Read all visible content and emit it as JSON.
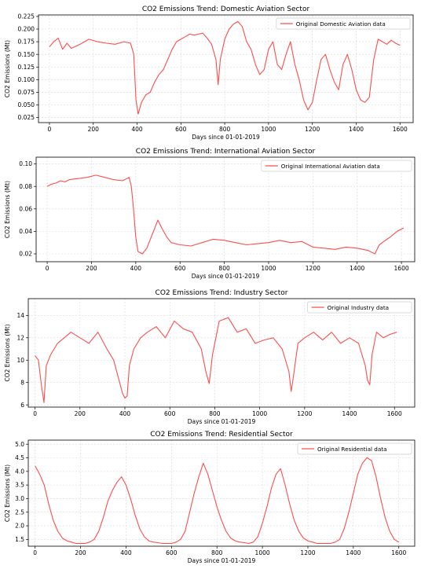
{
  "chart_data": [
    {
      "type": "line",
      "title": "CO2 Emissions Trend: Domestic Aviation Sector",
      "xlabel": "Days since 01-01-2019",
      "ylabel": "CO2 Emissions (Mt)",
      "xlim": [
        -50,
        1660
      ],
      "ylim": [
        0.015,
        0.228
      ],
      "xticks": [
        0,
        200,
        400,
        600,
        800,
        1000,
        1200,
        1400,
        1600
      ],
      "yticks": [
        0.025,
        0.05,
        0.075,
        0.1,
        0.125,
        0.15,
        0.175,
        0.2,
        0.225
      ],
      "ytick_labels": [
        "0.025",
        "0.050",
        "0.075",
        "0.100",
        "0.125",
        "0.150",
        "0.175",
        "0.200",
        "0.225"
      ],
      "grid": true,
      "legend": "top-right",
      "series": [
        {
          "name": "Original Domestic Aviation data",
          "color": "#ff4d4d",
          "x": [
            0,
            20,
            40,
            60,
            80,
            100,
            140,
            180,
            220,
            260,
            300,
            340,
            370,
            385,
            395,
            405,
            420,
            440,
            460,
            480,
            500,
            520,
            540,
            560,
            580,
            600,
            620,
            640,
            660,
            680,
            700,
            720,
            740,
            760,
            770,
            780,
            800,
            820,
            840,
            860,
            880,
            900,
            920,
            940,
            960,
            980,
            1000,
            1020,
            1040,
            1060,
            1080,
            1100,
            1120,
            1140,
            1160,
            1180,
            1200,
            1220,
            1240,
            1260,
            1280,
            1300,
            1320,
            1340,
            1360,
            1380,
            1400,
            1420,
            1440,
            1460,
            1480,
            1500,
            1520,
            1540,
            1560,
            1580,
            1600
          ],
          "y": [
            0.165,
            0.175,
            0.182,
            0.16,
            0.172,
            0.162,
            0.17,
            0.18,
            0.175,
            0.172,
            0.17,
            0.175,
            0.172,
            0.15,
            0.06,
            0.032,
            0.055,
            0.07,
            0.075,
            0.095,
            0.11,
            0.12,
            0.14,
            0.16,
            0.175,
            0.18,
            0.185,
            0.19,
            0.188,
            0.19,
            0.192,
            0.182,
            0.17,
            0.14,
            0.09,
            0.14,
            0.18,
            0.2,
            0.21,
            0.215,
            0.205,
            0.175,
            0.16,
            0.13,
            0.11,
            0.12,
            0.16,
            0.175,
            0.13,
            0.12,
            0.15,
            0.175,
            0.13,
            0.1,
            0.06,
            0.04,
            0.055,
            0.1,
            0.14,
            0.15,
            0.12,
            0.095,
            0.08,
            0.13,
            0.15,
            0.12,
            0.08,
            0.06,
            0.055,
            0.065,
            0.14,
            0.18,
            0.175,
            0.17,
            0.178,
            0.172,
            0.168
          ]
        }
      ]
    },
    {
      "type": "line",
      "title": "CO2 Emissions Trend: International Aviation Sector",
      "xlabel": "Days since 01-01-2019",
      "ylabel": "CO2 Emissions (Mt)",
      "xlim": [
        -50,
        1660
      ],
      "ylim": [
        0.013,
        0.106
      ],
      "xticks": [
        0,
        200,
        400,
        600,
        800,
        1000,
        1200,
        1400,
        1600
      ],
      "yticks": [
        0.02,
        0.04,
        0.06,
        0.08,
        0.1
      ],
      "ytick_labels": [
        "0.02",
        "0.04",
        "0.06",
        "0.08",
        "0.10"
      ],
      "grid": true,
      "legend": "top-right",
      "series": [
        {
          "name": "Original International Aviation data",
          "color": "#ff4d4d",
          "x": [
            0,
            20,
            40,
            60,
            80,
            100,
            140,
            180,
            220,
            260,
            300,
            340,
            370,
            380,
            390,
            400,
            410,
            430,
            450,
            470,
            490,
            500,
            520,
            540,
            560,
            600,
            650,
            700,
            750,
            800,
            850,
            900,
            950,
            1000,
            1050,
            1100,
            1150,
            1200,
            1250,
            1300,
            1350,
            1400,
            1450,
            1480,
            1500,
            1520,
            1550,
            1580,
            1610
          ],
          "y": [
            0.08,
            0.082,
            0.083,
            0.085,
            0.084,
            0.086,
            0.087,
            0.088,
            0.09,
            0.088,
            0.086,
            0.085,
            0.088,
            0.08,
            0.06,
            0.035,
            0.022,
            0.02,
            0.025,
            0.035,
            0.045,
            0.05,
            0.042,
            0.035,
            0.03,
            0.028,
            0.027,
            0.03,
            0.033,
            0.032,
            0.03,
            0.028,
            0.029,
            0.03,
            0.032,
            0.03,
            0.031,
            0.026,
            0.025,
            0.024,
            0.026,
            0.025,
            0.023,
            0.02,
            0.028,
            0.031,
            0.035,
            0.04,
            0.043
          ]
        }
      ]
    },
    {
      "type": "line",
      "title": "CO2 Emissions Trend: Industry Sector",
      "xlabel": "Days since 01-01-2019",
      "ylabel": "CO2 Emissions (Mt)",
      "xlim": [
        -30,
        1690
      ],
      "ylim": [
        5.8,
        15.5
      ],
      "xticks": [
        0,
        200,
        400,
        600,
        800,
        1000,
        1200,
        1400,
        1600
      ],
      "yticks": [
        6,
        8,
        10,
        12,
        14
      ],
      "ytick_labels": [
        "6",
        "8",
        "10",
        "12",
        "14"
      ],
      "grid": true,
      "legend": "top-right",
      "series": [
        {
          "name": "Original Industry data",
          "color": "#ff4d4d",
          "x": [
            0,
            15,
            30,
            40,
            50,
            70,
            100,
            130,
            160,
            200,
            240,
            280,
            320,
            350,
            370,
            390,
            400,
            410,
            420,
            440,
            470,
            500,
            540,
            580,
            620,
            660,
            700,
            740,
            760,
            775,
            790,
            820,
            860,
            900,
            940,
            980,
            1020,
            1060,
            1100,
            1130,
            1140,
            1150,
            1170,
            1200,
            1240,
            1280,
            1320,
            1360,
            1400,
            1440,
            1470,
            1480,
            1490,
            1500,
            1520,
            1550,
            1580,
            1610
          ],
          "y": [
            10.4,
            10.0,
            7.5,
            6.2,
            9.5,
            10.5,
            11.5,
            12.0,
            12.5,
            12.0,
            11.5,
            12.5,
            11.0,
            10.0,
            8.5,
            7.0,
            6.6,
            6.8,
            9.5,
            11.0,
            12.0,
            12.5,
            13.0,
            12.0,
            13.5,
            12.8,
            12.5,
            11.0,
            9.0,
            7.9,
            10.5,
            13.5,
            13.8,
            12.5,
            12.8,
            11.5,
            11.8,
            12.0,
            11.0,
            9.0,
            7.2,
            8.5,
            11.5,
            12.0,
            12.5,
            11.8,
            12.5,
            11.5,
            12.0,
            11.5,
            9.5,
            8.2,
            7.8,
            10.5,
            12.5,
            12.0,
            12.3,
            12.5
          ]
        }
      ]
    },
    {
      "type": "line",
      "title": "CO2 Emissions Trend: Residential Sector",
      "xlabel": "Days since 01-01-2019",
      "ylabel": "CO2 Emissions (Mt)",
      "xlim": [
        -30,
        1670
      ],
      "ylim": [
        1.25,
        5.15
      ],
      "xticks": [
        0,
        200,
        400,
        600,
        800,
        1000,
        1200,
        1400,
        1600
      ],
      "yticks": [
        1.5,
        2.0,
        2.5,
        3.0,
        3.5,
        4.0,
        4.5,
        5.0
      ],
      "ytick_labels": [
        "1.5",
        "2.0",
        "2.5",
        "3.0",
        "3.5",
        "4.0",
        "4.5",
        "5.0"
      ],
      "grid": true,
      "legend": "top-right",
      "series": [
        {
          "name": "Original Residential data",
          "color": "#ff4d4d",
          "x": [
            0,
            20,
            40,
            60,
            80,
            100,
            120,
            140,
            160,
            180,
            200,
            220,
            240,
            260,
            280,
            300,
            320,
            340,
            360,
            380,
            400,
            420,
            440,
            460,
            480,
            500,
            520,
            540,
            560,
            580,
            600,
            620,
            640,
            660,
            680,
            700,
            720,
            740,
            760,
            780,
            800,
            820,
            840,
            860,
            880,
            900,
            920,
            940,
            960,
            980,
            1000,
            1020,
            1040,
            1060,
            1080,
            1100,
            1120,
            1140,
            1160,
            1180,
            1200,
            1220,
            1240,
            1260,
            1280,
            1300,
            1320,
            1340,
            1360,
            1380,
            1400,
            1420,
            1440,
            1460,
            1480,
            1500,
            1520,
            1540,
            1560,
            1580,
            1600
          ],
          "y": [
            4.2,
            3.9,
            3.5,
            2.8,
            2.2,
            1.8,
            1.55,
            1.45,
            1.4,
            1.35,
            1.35,
            1.35,
            1.4,
            1.5,
            1.8,
            2.3,
            2.9,
            3.3,
            3.6,
            3.8,
            3.5,
            3.0,
            2.4,
            1.9,
            1.6,
            1.45,
            1.4,
            1.38,
            1.35,
            1.35,
            1.35,
            1.4,
            1.5,
            1.8,
            2.5,
            3.2,
            3.8,
            4.3,
            3.9,
            3.3,
            2.7,
            2.2,
            1.8,
            1.55,
            1.45,
            1.4,
            1.38,
            1.35,
            1.4,
            1.6,
            2.1,
            2.7,
            3.4,
            3.9,
            4.1,
            3.5,
            2.8,
            2.2,
            1.8,
            1.55,
            1.45,
            1.4,
            1.35,
            1.35,
            1.35,
            1.35,
            1.4,
            1.5,
            1.9,
            2.5,
            3.2,
            3.9,
            4.3,
            4.5,
            4.4,
            3.8,
            3.0,
            2.3,
            1.8,
            1.5,
            1.4
          ]
        }
      ]
    }
  ]
}
